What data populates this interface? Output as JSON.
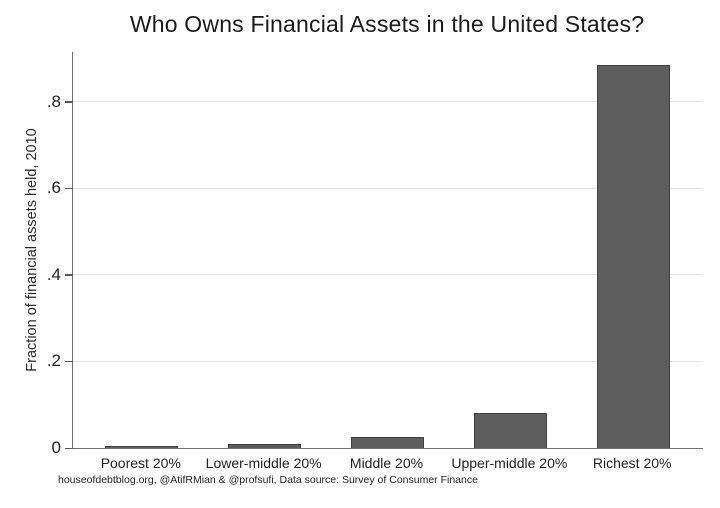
{
  "chart_data": {
    "type": "bar",
    "title": "Who Owns Financial Assets in the United States?",
    "ylabel": "Fraction of financial assets held, 2010",
    "xlabel": "",
    "categories": [
      "Poorest 20%",
      "Lower-middle 20%",
      "Middle 20%",
      "Upper-middle 20%",
      "Richest 20%"
    ],
    "values": [
      0.005,
      0.01,
      0.025,
      0.08,
      0.885
    ],
    "y_ticks": {
      "values": [
        0,
        0.2,
        0.4,
        0.6,
        0.8
      ],
      "labels": [
        "0",
        ".2",
        ".4",
        ".6",
        ".8"
      ]
    },
    "ylim": [
      0,
      0.915
    ],
    "grid": "horizontal",
    "legend": "none",
    "source_note": "houseofdebtblog.org, @AtifRMian & @profsufi, Data source: Survey of Consumer Finance"
  },
  "colors": {
    "bar_fill": "#5e5e5e",
    "bar_border": "#3f3f3f",
    "gridline": "#e4e4e4",
    "axis": "#6e6e6e",
    "text": "#1f1f1f",
    "background": "#ffffff"
  }
}
